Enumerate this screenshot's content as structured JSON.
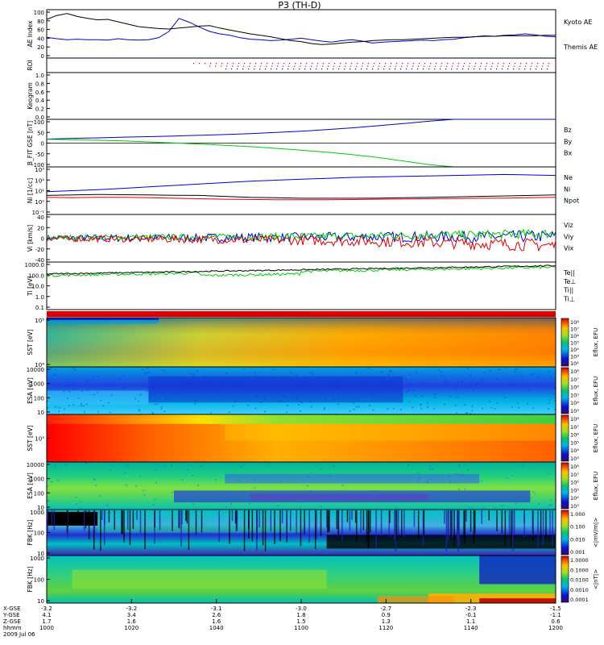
{
  "title": "P3 (TH-D)",
  "date_label": "2009 Jul 06",
  "colors": {
    "black": "#000000",
    "blue": "#0000cc",
    "red": "#dd0000",
    "green": "#00cc00"
  },
  "chart_data": [
    {
      "id": "ae",
      "type": "line",
      "ylabel": "AE Index",
      "ylim": [
        0,
        100
      ],
      "yticks": [
        "100",
        "80",
        "60",
        "40",
        "20",
        "0"
      ],
      "x": [
        0,
        0.02,
        0.04,
        0.06,
        0.08,
        0.1,
        0.12,
        0.14,
        0.16,
        0.18,
        0.2,
        0.22,
        0.24,
        0.26,
        0.28,
        0.3,
        0.32,
        0.34,
        0.36,
        0.38,
        0.4,
        0.42,
        0.44,
        0.46,
        0.48,
        0.5,
        0.52,
        0.54,
        0.56,
        0.58,
        0.6,
        0.62,
        0.64,
        0.66,
        0.68,
        0.7,
        0.72,
        0.74,
        0.76,
        0.78,
        0.8,
        0.82,
        0.84,
        0.86,
        0.88,
        0.9,
        0.92,
        0.94,
        0.96,
        0.98,
        1.0
      ],
      "series": [
        {
          "name": "Kyoto AE",
          "color": "#0000cc",
          "values": [
            43,
            40,
            38,
            39,
            38,
            38,
            37,
            40,
            38,
            37,
            38,
            42,
            55,
            82,
            74,
            64,
            55,
            50,
            47,
            42,
            39,
            38,
            36,
            37,
            39,
            41,
            38,
            35,
            33,
            36,
            38,
            35,
            31,
            33,
            34,
            35,
            36,
            37,
            36,
            38,
            39,
            42,
            44,
            46,
            45,
            47,
            48,
            50,
            48,
            45,
            44
          ]
        },
        {
          "name": "Themis AE",
          "color": "#000000",
          "values": [
            80,
            88,
            92,
            86,
            82,
            79,
            80,
            75,
            70,
            65,
            63,
            61,
            60,
            62,
            64,
            66,
            67,
            62,
            58,
            54,
            50,
            47,
            44,
            40,
            36,
            34,
            30,
            28,
            29,
            31,
            33,
            34,
            36,
            37,
            38,
            38,
            39,
            40,
            41,
            42,
            43,
            43,
            44,
            45,
            45,
            46,
            46,
            46,
            46,
            47,
            47
          ]
        }
      ]
    },
    {
      "id": "roi",
      "type": "table",
      "ylabel": "ROI"
    },
    {
      "id": "keogram",
      "type": "line",
      "ylabel": "Keogram",
      "ylim": [
        0,
        1
      ],
      "yticks": [
        "1.0",
        "0.8",
        "0.6",
        "0.4",
        "0.2",
        "0.0"
      ]
    },
    {
      "id": "bfield",
      "type": "line",
      "ylabel": "B_FIT GSE [nT]",
      "ylim": [
        -100,
        100
      ],
      "yticks": [
        "100",
        "50",
        "0",
        "-50",
        "-100"
      ],
      "legend": [
        "Bz",
        "By",
        "Bx"
      ],
      "x": [
        0,
        0.05,
        0.1,
        0.15,
        0.2,
        0.25,
        0.3,
        0.35,
        0.4,
        0.45,
        0.5,
        0.55,
        0.6,
        0.65,
        0.7,
        0.75,
        0.8,
        0.85,
        0.9,
        0.95,
        1.0
      ],
      "series": [
        {
          "name": "Bx",
          "color": "#0000cc",
          "values": [
            17,
            20,
            22,
            25,
            27,
            30,
            33,
            36,
            40,
            45,
            50,
            57,
            64,
            73,
            82,
            92,
            100,
            100,
            100,
            100,
            100
          ]
        },
        {
          "name": "By",
          "color": "#00cc00",
          "values": [
            16,
            14,
            12,
            9,
            5,
            1,
            -4,
            -9,
            -15,
            -22,
            -30,
            -38,
            -48,
            -60,
            -75,
            -90,
            -100,
            -100,
            -100,
            -100,
            -100
          ]
        }
      ]
    },
    {
      "id": "density",
      "type": "line",
      "ylabel": "Ni [1/cc]",
      "ylog": true,
      "ylim": [
        -2,
        3
      ],
      "yticks": [
        "10³",
        "10²",
        "10¹",
        "10⁰",
        "10⁻¹"
      ],
      "legend": [
        "Ne",
        "Ni",
        "Npot"
      ],
      "x": [
        0,
        0.05,
        0.1,
        0.15,
        0.2,
        0.25,
        0.3,
        0.35,
        0.4,
        0.45,
        0.5,
        0.55,
        0.6,
        0.65,
        0.7,
        0.75,
        0.8,
        0.85,
        0.9,
        0.95,
        1.0
      ],
      "series": [
        {
          "name": "Ni",
          "color": "#0000cc",
          "values": [
            0.4,
            0.5,
            0.6,
            0.75,
            0.9,
            1.05,
            1.2,
            1.35,
            1.5,
            1.6,
            1.7,
            1.8,
            1.9,
            1.95,
            2.0,
            2.05,
            2.1,
            2.15,
            2.2,
            2.15,
            2.1
          ]
        },
        {
          "name": "Npot",
          "color": "#000000",
          "values": [
            0.0,
            0.05,
            0.1,
            0.08,
            0.05,
            0.02,
            0.0,
            -0.1,
            -0.2,
            -0.25,
            -0.3,
            -0.3,
            -0.3,
            -0.28,
            -0.25,
            -0.2,
            -0.15,
            -0.1,
            -0.05,
            0.0,
            0.05
          ]
        },
        {
          "name": "Ne",
          "color": "#dd0000",
          "values": [
            -0.2,
            -0.25,
            -0.2,
            -0.2,
            -0.25,
            -0.3,
            -0.35,
            -0.4,
            -0.42,
            -0.45,
            -0.45,
            -0.45,
            -0.43,
            -0.4,
            -0.38,
            -0.35,
            -0.32,
            -0.3,
            -0.28,
            -0.25,
            -0.2
          ]
        }
      ]
    },
    {
      "id": "velocity",
      "type": "line",
      "ylabel": "Vi [km/s]",
      "ylim": [
        -50,
        50
      ],
      "yticks": [
        "40",
        "20",
        "0",
        "-20",
        "-40"
      ],
      "legend": [
        "Viz",
        "Viy",
        "Vix"
      ]
    },
    {
      "id": "temperature",
      "type": "line",
      "ylabel": "Ti [eV]",
      "ylog": true,
      "ylim": [
        -1.3,
        3.3
      ],
      "yticks": [
        "1000.0",
        "100.0",
        "10.0",
        "1.0",
        "0.1"
      ],
      "legend": [
        "Te||",
        "Te⊥",
        "Ti||",
        "Ti⊥"
      ]
    },
    {
      "id": "sst1",
      "type": "heatmap",
      "ylabel": "SST [eV]",
      "yticks": [
        "10⁵",
        "10⁴"
      ],
      "cbar_label": "Eflux, EFU",
      "cbar_ticks": [
        "10⁸",
        "10⁷",
        "10⁶",
        "10⁵",
        "10⁴",
        "10³",
        "10²"
      ]
    },
    {
      "id": "esa1",
      "type": "heatmap",
      "ylabel": "ESA [eV]",
      "yticks": [
        "10000",
        "1000",
        "100",
        "10"
      ],
      "cbar_label": "Eflux, EFU",
      "cbar_ticks": [
        "10⁸",
        "10⁷",
        "10⁶",
        "10⁵",
        "10⁴",
        "10³"
      ]
    },
    {
      "id": "sst2",
      "type": "heatmap",
      "ylabel": "SST [eV]",
      "yticks": [
        "10⁵"
      ],
      "cbar_label": "Eflux, EFU",
      "cbar_ticks": [
        "10⁸",
        "10⁷",
        "10⁶",
        "10⁵",
        "10⁴",
        "10³"
      ]
    },
    {
      "id": "esa2",
      "type": "heatmap",
      "ylabel": "ESA [eV]",
      "yticks": [
        "10000",
        "1000",
        "100",
        "10"
      ],
      "cbar_label": "Eflux, EFU",
      "cbar_ticks": [
        "10⁸",
        "10⁷",
        "10⁶",
        "10⁵",
        "10⁴",
        "10³"
      ]
    },
    {
      "id": "fbk_e",
      "type": "heatmap",
      "ylabel": "FBK [Hz]",
      "yticks": [
        "1000",
        "100",
        "10"
      ],
      "cbar_label": "<|mV/m|>",
      "cbar_ticks": [
        "1.000",
        "0.100",
        "0.010",
        "0.001"
      ]
    },
    {
      "id": "fbk_b",
      "type": "heatmap",
      "ylabel": "FBK [Hz]",
      "yticks": [
        "1000",
        "100",
        "10"
      ],
      "cbar_label": "<|nT|>",
      "cbar_ticks": [
        "1.0000",
        "0.1000",
        "0.0100",
        "0.0010",
        "0.0001"
      ]
    }
  ],
  "x_axis": {
    "row_labels": [
      "X-GSE",
      "Y-GSE",
      "Z-GSE",
      "hhmm"
    ],
    "ticks": [
      {
        "x": "-3.2",
        "y": "4.1",
        "z": "1.7",
        "t": "1000"
      },
      {
        "x": "-3.2",
        "y": "3.4",
        "z": "1.6",
        "t": "1020"
      },
      {
        "x": "-3.1",
        "y": "2.6",
        "z": "1.6",
        "t": "1040"
      },
      {
        "x": "-3.0",
        "y": "1.8",
        "z": "1.5",
        "t": "1100"
      },
      {
        "x": "-2.7",
        "y": "0.9",
        "z": "1.3",
        "t": "1120"
      },
      {
        "x": "-2.3",
        "y": "-0.1",
        "z": "1.1",
        "t": "1140"
      },
      {
        "x": "-1.5",
        "y": "-1.1",
        "z": "0.6",
        "t": "1200"
      }
    ]
  }
}
